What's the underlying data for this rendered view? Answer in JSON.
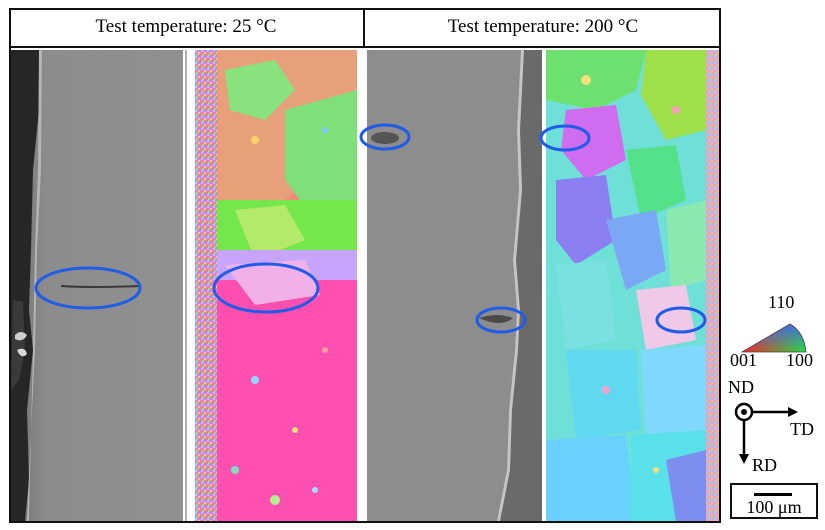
{
  "headers": {
    "left": "Test temperature: 25 °C",
    "right": "Test temperature: 200 °C"
  },
  "ipf_key": {
    "top": "110",
    "bottom_left": "001",
    "bottom_right": "100"
  },
  "axes": {
    "normal": "ND",
    "transverse": "TD",
    "rolling": "RD"
  },
  "scale_bar": {
    "label": "100 μm"
  },
  "colors": {
    "highlight_ellipse": "#1f5ce8",
    "sem_background": "#8a8a8a",
    "ipf_red": "#ff4fb0",
    "ipf_green": "#74e84a",
    "ipf_blue": "#4aa8ff"
  }
}
